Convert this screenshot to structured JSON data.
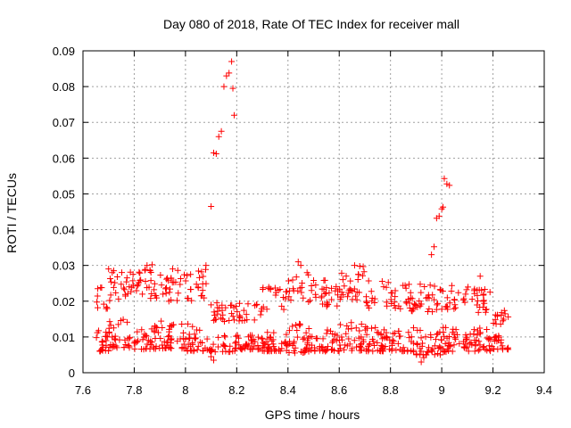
{
  "chart_data": {
    "type": "scatter",
    "title": "Day 080 of 2018, Rate Of TEC Index for receiver mall",
    "xlabel": "GPS time / hours",
    "ylabel": "ROTI / TECUs",
    "xlim": [
      7.6,
      9.4
    ],
    "ylim": [
      0,
      0.09
    ],
    "xticks": [
      "7.6",
      "7.8",
      "8",
      "8.2",
      "8.4",
      "8.6",
      "8.8",
      "9",
      "9.2",
      "9.4"
    ],
    "yticks": [
      "0",
      "0.01",
      "0.02",
      "0.03",
      "0.04",
      "0.05",
      "0.06",
      "0.07",
      "0.08",
      "0.09"
    ],
    "grid": true,
    "marker": "+",
    "color": "#ff0000",
    "series": [
      {
        "name": "ROTI",
        "points": [
          [
            8.1,
            0.0465
          ],
          [
            8.11,
            0.0615
          ],
          [
            8.12,
            0.0612
          ],
          [
            8.13,
            0.066
          ],
          [
            8.14,
            0.0675
          ],
          [
            8.15,
            0.08
          ],
          [
            8.16,
            0.083
          ],
          [
            8.17,
            0.0838
          ],
          [
            8.18,
            0.087
          ],
          [
            8.185,
            0.0795
          ],
          [
            8.19,
            0.072
          ],
          [
            8.96,
            0.033
          ],
          [
            8.97,
            0.0352
          ],
          [
            8.98,
            0.0432
          ],
          [
            8.99,
            0.0438
          ],
          [
            9.0,
            0.0458
          ],
          [
            9.005,
            0.0463
          ],
          [
            9.01,
            0.0543
          ],
          [
            9.02,
            0.0528
          ],
          [
            9.03,
            0.0524
          ],
          [
            8.1,
            0.0045
          ],
          [
            8.11,
            0.0035
          ],
          [
            8.92,
            0.003
          ],
          [
            8.93,
            0.0042
          ],
          [
            8.94,
            0.005
          ],
          [
            7.85,
            0.03
          ],
          [
            7.87,
            0.0302
          ],
          [
            7.95,
            0.029
          ],
          [
            7.97,
            0.0286
          ],
          [
            8.08,
            0.03
          ],
          [
            8.44,
            0.031
          ],
          [
            8.45,
            0.03
          ],
          [
            8.66,
            0.03
          ],
          [
            8.68,
            0.0298
          ],
          [
            9.15,
            0.027
          ],
          [
            7.7,
            0.029
          ],
          [
            7.72,
            0.0285
          ],
          [
            8.02,
            0.0275
          ],
          [
            8.54,
            0.0258
          ],
          [
            8.5,
            0.0258
          ]
        ]
      }
    ],
    "bands": [
      {
        "x0": 7.65,
        "x1": 7.7,
        "base": 0.006,
        "amp": 0.018,
        "n": 34
      },
      {
        "x0": 7.7,
        "x1": 7.8,
        "base": 0.007,
        "amp": 0.022,
        "n": 60
      },
      {
        "x0": 7.8,
        "x1": 7.9,
        "base": 0.0065,
        "amp": 0.0235,
        "n": 60
      },
      {
        "x0": 7.9,
        "x1": 8.0,
        "base": 0.0068,
        "amp": 0.0215,
        "n": 60
      },
      {
        "x0": 8.0,
        "x1": 8.1,
        "base": 0.006,
        "amp": 0.023,
        "n": 58
      },
      {
        "x0": 8.1,
        "x1": 8.2,
        "base": 0.0058,
        "amp": 0.014,
        "n": 50
      },
      {
        "x0": 8.2,
        "x1": 8.3,
        "base": 0.0065,
        "amp": 0.013,
        "n": 55
      },
      {
        "x0": 8.3,
        "x1": 8.4,
        "base": 0.006,
        "amp": 0.018,
        "n": 60
      },
      {
        "x0": 8.4,
        "x1": 8.5,
        "base": 0.0055,
        "amp": 0.023,
        "n": 60
      },
      {
        "x0": 8.5,
        "x1": 8.6,
        "base": 0.006,
        "amp": 0.02,
        "n": 60
      },
      {
        "x0": 8.6,
        "x1": 8.7,
        "base": 0.0062,
        "amp": 0.0235,
        "n": 62
      },
      {
        "x0": 8.7,
        "x1": 8.8,
        "base": 0.006,
        "amp": 0.02,
        "n": 60
      },
      {
        "x0": 8.8,
        "x1": 8.9,
        "base": 0.0058,
        "amp": 0.019,
        "n": 60
      },
      {
        "x0": 8.9,
        "x1": 9.0,
        "base": 0.005,
        "amp": 0.02,
        "n": 60
      },
      {
        "x0": 9.0,
        "x1": 9.1,
        "base": 0.0058,
        "amp": 0.019,
        "n": 60
      },
      {
        "x0": 9.1,
        "x1": 9.2,
        "base": 0.006,
        "amp": 0.018,
        "n": 58
      },
      {
        "x0": 9.2,
        "x1": 9.26,
        "base": 0.0065,
        "amp": 0.011,
        "n": 34
      }
    ]
  }
}
